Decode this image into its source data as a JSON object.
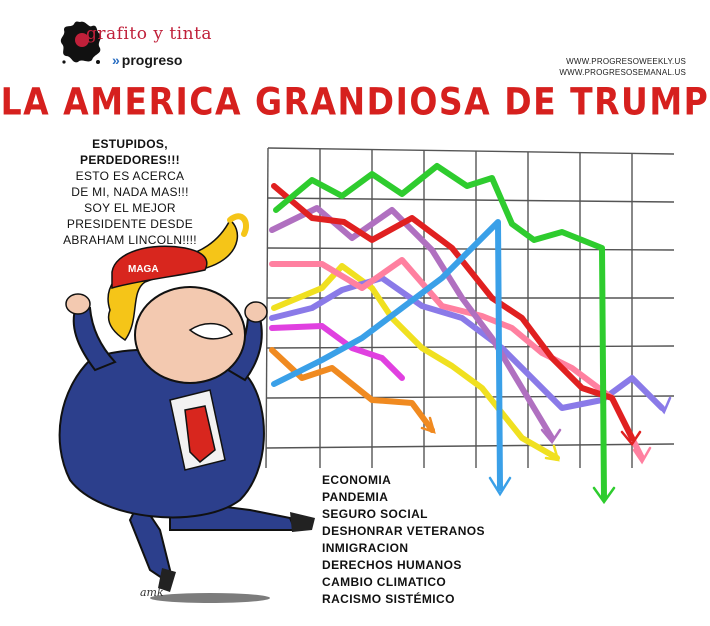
{
  "logo": {
    "name": "grafito y tinta",
    "sub_mark": "»",
    "sub_label": "progreso"
  },
  "urls": [
    "WWW.PROGRESOWEEKLY.US",
    "WWW.PROGRESOSEMANAL.US"
  ],
  "title": "LA AMERICA GRANDIOSA DE TRUMP",
  "speech": {
    "bold_lines": [
      "ESTUPIDOS,",
      "PERDEDORES!!!"
    ],
    "lines": [
      "ESTO ES ACERCA",
      "DE MI, NADA MAS!!!",
      "SOY EL MEJOR",
      "PRESIDENTE DESDE",
      "ABRAHAM LINCOLN!!!!"
    ]
  },
  "hat_text": "MAGA",
  "signature": "amk",
  "legend": [
    "ECONOMIA",
    "PANDEMIA",
    "SEGURO SOCIAL",
    "DESHONRAR VETERANOS",
    "INMIGRACION",
    "DERECHOS HUMANOS",
    "CAMBIO CLIMATICO",
    "RACISMO SISTÉMICO"
  ],
  "colors": {
    "title_red": "#d6201e",
    "green": "#2ecc2e",
    "red": "#e02020",
    "purple": "#b070c0",
    "blue": "#3aa0e8",
    "yellow": "#f0e020",
    "pink": "#ff80a0",
    "violet": "#8a7ae8",
    "magenta": "#e040e0",
    "orange": "#f08a20",
    "suit": "#2c3f8c",
    "hair": "#f5c518",
    "hat": "#d8261e",
    "tie": "#d8261e"
  }
}
